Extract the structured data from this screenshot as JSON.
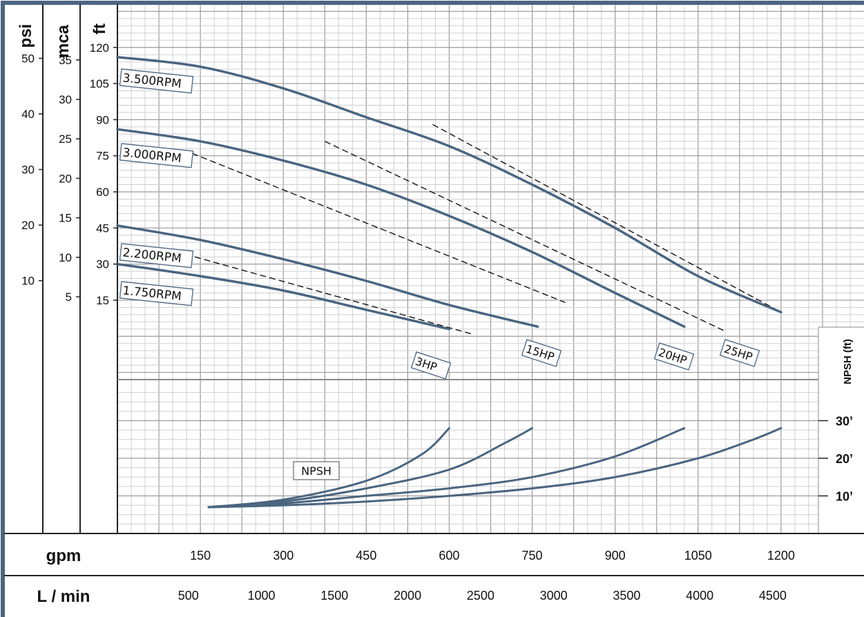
{
  "chart_data": {
    "type": "line",
    "axes": {
      "head_units": [
        "psi",
        "mca",
        "ft"
      ],
      "npsh_title": "NPSH (ft)",
      "flow_title_gpm": "gpm",
      "flow_title_lmin": "L / min"
    },
    "x_range_gpm": [
      0,
      1350
    ],
    "ft_range": [
      -18,
      138
    ],
    "ft_ticks": [
      15,
      30,
      45,
      60,
      75,
      90,
      105,
      120
    ],
    "mca_ticks": [
      5,
      10,
      15,
      20,
      25,
      30,
      35
    ],
    "psi_ticks": [
      10,
      20,
      30,
      40,
      50
    ],
    "gpm_ticks": [
      150,
      300,
      450,
      600,
      750,
      900,
      1050,
      1200
    ],
    "lmin_ticks": [
      500,
      1000,
      1500,
      2000,
      2500,
      3000,
      3500,
      4000,
      4500
    ],
    "npsh_ticks": [
      "30’",
      "20’",
      "10’"
    ],
    "npsh_range_ft": [
      0,
      40
    ],
    "curves": [
      {
        "name": "3.500RPM",
        "points": [
          [
            0,
            116
          ],
          [
            150,
            112
          ],
          [
            300,
            103
          ],
          [
            450,
            91
          ],
          [
            600,
            79
          ],
          [
            750,
            63
          ],
          [
            900,
            45
          ],
          [
            1050,
            25
          ],
          [
            1200,
            10
          ]
        ]
      },
      {
        "name": "3.000RPM",
        "points": [
          [
            0,
            86
          ],
          [
            150,
            81
          ],
          [
            300,
            73
          ],
          [
            450,
            63
          ],
          [
            600,
            50
          ],
          [
            750,
            35
          ],
          [
            900,
            18
          ],
          [
            1025,
            4
          ]
        ]
      },
      {
        "name": "2.200RPM",
        "points": [
          [
            0,
            46
          ],
          [
            150,
            40
          ],
          [
            300,
            32
          ],
          [
            450,
            23
          ],
          [
            600,
            13
          ],
          [
            760,
            4
          ]
        ]
      },
      {
        "name": "1.750RPM",
        "points": [
          [
            0,
            30
          ],
          [
            150,
            25
          ],
          [
            300,
            19
          ],
          [
            450,
            11
          ],
          [
            600,
            3
          ]
        ]
      }
    ],
    "power_lines": [
      {
        "name": "3HP",
        "points": [
          [
            140,
            33
          ],
          [
            640,
            1
          ]
        ]
      },
      {
        "name": "15HP",
        "points": [
          [
            135,
            76
          ],
          [
            810,
            14
          ]
        ]
      },
      {
        "name": "20HP",
        "points": [
          [
            375,
            81
          ],
          [
            1100,
            2
          ]
        ]
      },
      {
        "name": "25HP",
        "points": [
          [
            570,
            88
          ],
          [
            1200,
            10
          ]
        ]
      }
    ],
    "npsh_label": "NPSH",
    "npsh_curves": [
      {
        "points": [
          [
            165,
            7
          ],
          [
            300,
            9
          ],
          [
            450,
            14
          ],
          [
            550,
            21
          ],
          [
            600,
            28
          ]
        ]
      },
      {
        "points": [
          [
            165,
            7
          ],
          [
            300,
            8.5
          ],
          [
            450,
            12
          ],
          [
            600,
            17
          ],
          [
            700,
            24
          ],
          [
            750,
            28
          ]
        ]
      },
      {
        "points": [
          [
            165,
            7
          ],
          [
            300,
            8
          ],
          [
            450,
            10
          ],
          [
            600,
            12
          ],
          [
            750,
            15
          ],
          [
            900,
            20.5
          ],
          [
            1025,
            28
          ]
        ]
      },
      {
        "points": [
          [
            165,
            7
          ],
          [
            300,
            7.5
          ],
          [
            450,
            8.5
          ],
          [
            600,
            10
          ],
          [
            750,
            12
          ],
          [
            900,
            15
          ],
          [
            1050,
            20
          ],
          [
            1150,
            25
          ],
          [
            1200,
            28
          ]
        ]
      }
    ]
  }
}
